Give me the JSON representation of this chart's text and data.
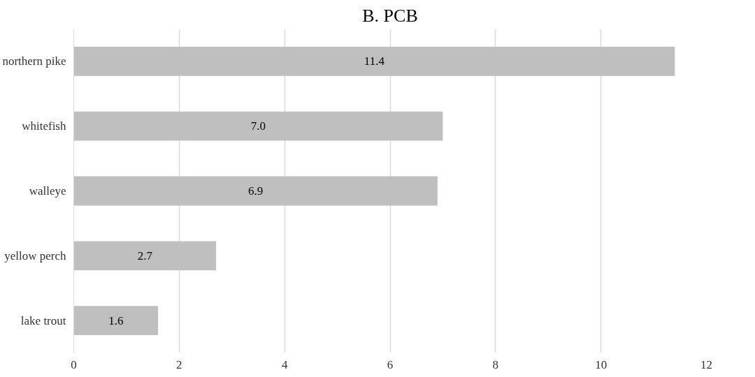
{
  "chart_data": {
    "type": "bar",
    "orientation": "horizontal",
    "title": "B. PCB",
    "categories": [
      "northern pike",
      "whitefish",
      "walleye",
      "yellow perch",
      "lake trout"
    ],
    "values": [
      11.4,
      7.0,
      6.9,
      2.7,
      1.6
    ],
    "value_labels": [
      "11.4",
      "7.0",
      "6.9",
      "2.7",
      "1.6"
    ],
    "color": "#bfbfbf",
    "xlim": [
      0,
      12
    ],
    "xticks": [
      0,
      2,
      4,
      6,
      8,
      10,
      12
    ],
    "grid": "x"
  }
}
